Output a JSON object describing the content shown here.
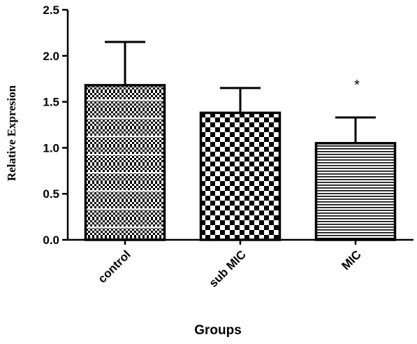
{
  "chart_data": {
    "type": "bar",
    "categories": [
      "control",
      "sub MIC",
      "MIC"
    ],
    "values": [
      1.68,
      1.38,
      1.05
    ],
    "errors": [
      0.47,
      0.27,
      0.28
    ],
    "annotations": [
      "",
      "",
      "*"
    ],
    "xlabel": "Groups",
    "ylabel": "Relative Expresion",
    "ylim": [
      0,
      2.5
    ],
    "yticks": [
      "0.0",
      "0.5",
      "1.0",
      "1.5",
      "2.0",
      "2.5"
    ],
    "grid": false,
    "patterns": [
      "fine-check-with-white-stripes",
      "checkerboard",
      "horizontal-stripes"
    ]
  }
}
